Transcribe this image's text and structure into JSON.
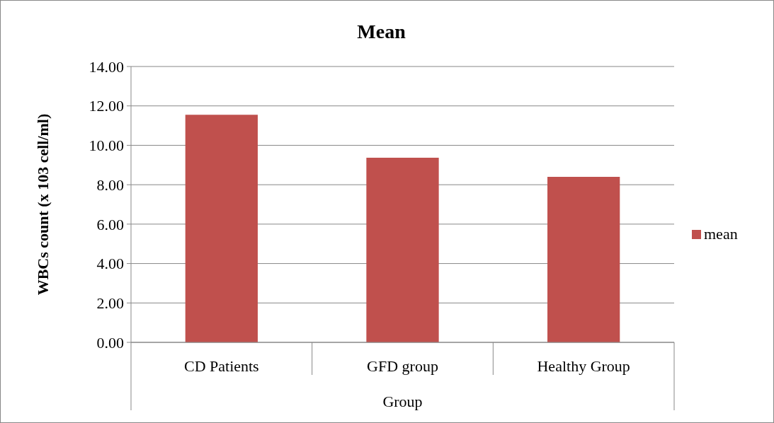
{
  "chart_data": {
    "type": "bar",
    "title": "Mean",
    "xlabel": "Group",
    "ylabel": "WBCs count (x 103 cell/ml)",
    "categories": [
      "CD Patients",
      "GFD group",
      "Healthy Group"
    ],
    "series": [
      {
        "name": "mean",
        "color": "#c0504d",
        "values": [
          11.55,
          9.37,
          8.4
        ]
      }
    ],
    "ylim": [
      0,
      14
    ],
    "yticks": [
      {
        "value": 0,
        "label": "0.00"
      },
      {
        "value": 2,
        "label": "2.00"
      },
      {
        "value": 4,
        "label": "4.00"
      },
      {
        "value": 6,
        "label": "6.00"
      },
      {
        "value": 8,
        "label": "8.00"
      },
      {
        "value": 10,
        "label": "10.00"
      },
      {
        "value": 12,
        "label": "12.00"
      },
      {
        "value": 14,
        "label": "14.00"
      }
    ],
    "grid": "y",
    "legend": "right"
  }
}
